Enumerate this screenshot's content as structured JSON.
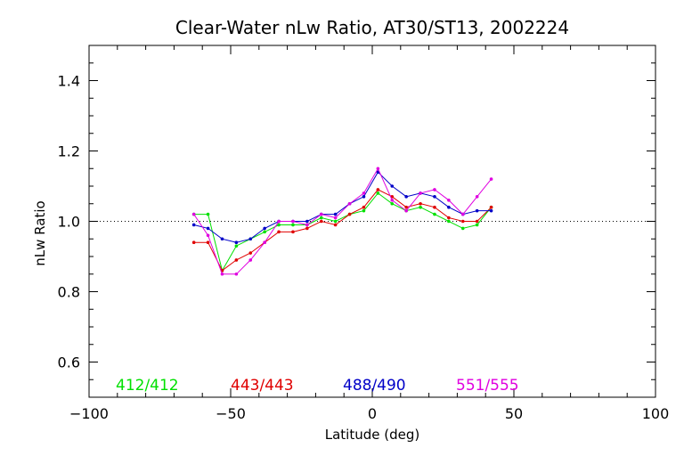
{
  "chart_data": {
    "type": "line",
    "title": "Clear-Water nLw Ratio, AT30/ST13, 2002224",
    "xlabel": "Latitude (deg)",
    "ylabel": "nLw Ratio",
    "xlim": [
      -100,
      100
    ],
    "ylim": [
      0.5,
      1.5
    ],
    "xticks": [
      -100,
      -50,
      0,
      50,
      100
    ],
    "xtick_labels": [
      "−100",
      "−50",
      "0",
      "50",
      "100"
    ],
    "yticks": [
      0.6,
      0.8,
      1.0,
      1.2,
      1.4
    ],
    "ytick_labels": [
      "0.6",
      "0.8",
      "1.0",
      "1.2",
      "1.4"
    ],
    "reference_line": {
      "y": 1.0,
      "style": "dotted"
    },
    "grid": false,
    "legend_position": "bottom inside plot",
    "series": [
      {
        "name": "412/412",
        "color": "#00e000",
        "x": [
          -63,
          -58,
          -53,
          -48,
          -43,
          -38,
          -33,
          -28,
          -23,
          -18,
          -13,
          -8,
          -3,
          2,
          7,
          12,
          17,
          22,
          27,
          32,
          37,
          42
        ],
        "y": [
          1.02,
          1.02,
          0.86,
          0.93,
          0.95,
          0.97,
          0.99,
          0.99,
          0.99,
          1.01,
          1.0,
          1.02,
          1.03,
          1.08,
          1.05,
          1.03,
          1.04,
          1.02,
          1.0,
          0.98,
          0.99,
          1.04
        ]
      },
      {
        "name": "443/443",
        "color": "#e00000",
        "x": [
          -63,
          -58,
          -53,
          -48,
          -43,
          -38,
          -33,
          -28,
          -23,
          -18,
          -13,
          -8,
          -3,
          2,
          7,
          12,
          17,
          22,
          27,
          32,
          37,
          42
        ],
        "y": [
          0.94,
          0.94,
          0.86,
          0.89,
          0.91,
          0.94,
          0.97,
          0.97,
          0.98,
          1.0,
          0.99,
          1.02,
          1.04,
          1.09,
          1.07,
          1.04,
          1.05,
          1.04,
          1.01,
          1.0,
          1.0,
          1.04
        ]
      },
      {
        "name": "488/490",
        "color": "#0000c8",
        "x": [
          -63,
          -58,
          -53,
          -48,
          -43,
          -38,
          -33,
          -28,
          -23,
          -18,
          -13,
          -8,
          -3,
          2,
          7,
          12,
          17,
          22,
          27,
          32,
          37,
          42
        ],
        "y": [
          0.99,
          0.98,
          0.95,
          0.94,
          0.95,
          0.98,
          1.0,
          1.0,
          1.0,
          1.02,
          1.02,
          1.05,
          1.07,
          1.14,
          1.1,
          1.07,
          1.08,
          1.07,
          1.04,
          1.02,
          1.03,
          1.03
        ]
      },
      {
        "name": "551/555",
        "color": "#e000e0",
        "x": [
          -63,
          -58,
          -53,
          -48,
          -43,
          -38,
          -33,
          -28,
          -23,
          -18,
          -13,
          -8,
          -3,
          2,
          7,
          12,
          17,
          22,
          27,
          32,
          37,
          42
        ],
        "y": [
          1.02,
          0.96,
          0.85,
          0.85,
          0.89,
          0.94,
          1.0,
          1.0,
          0.99,
          1.02,
          1.01,
          1.05,
          1.08,
          1.15,
          1.06,
          1.03,
          1.08,
          1.09,
          1.06,
          1.02,
          1.07,
          1.12
        ]
      }
    ]
  }
}
